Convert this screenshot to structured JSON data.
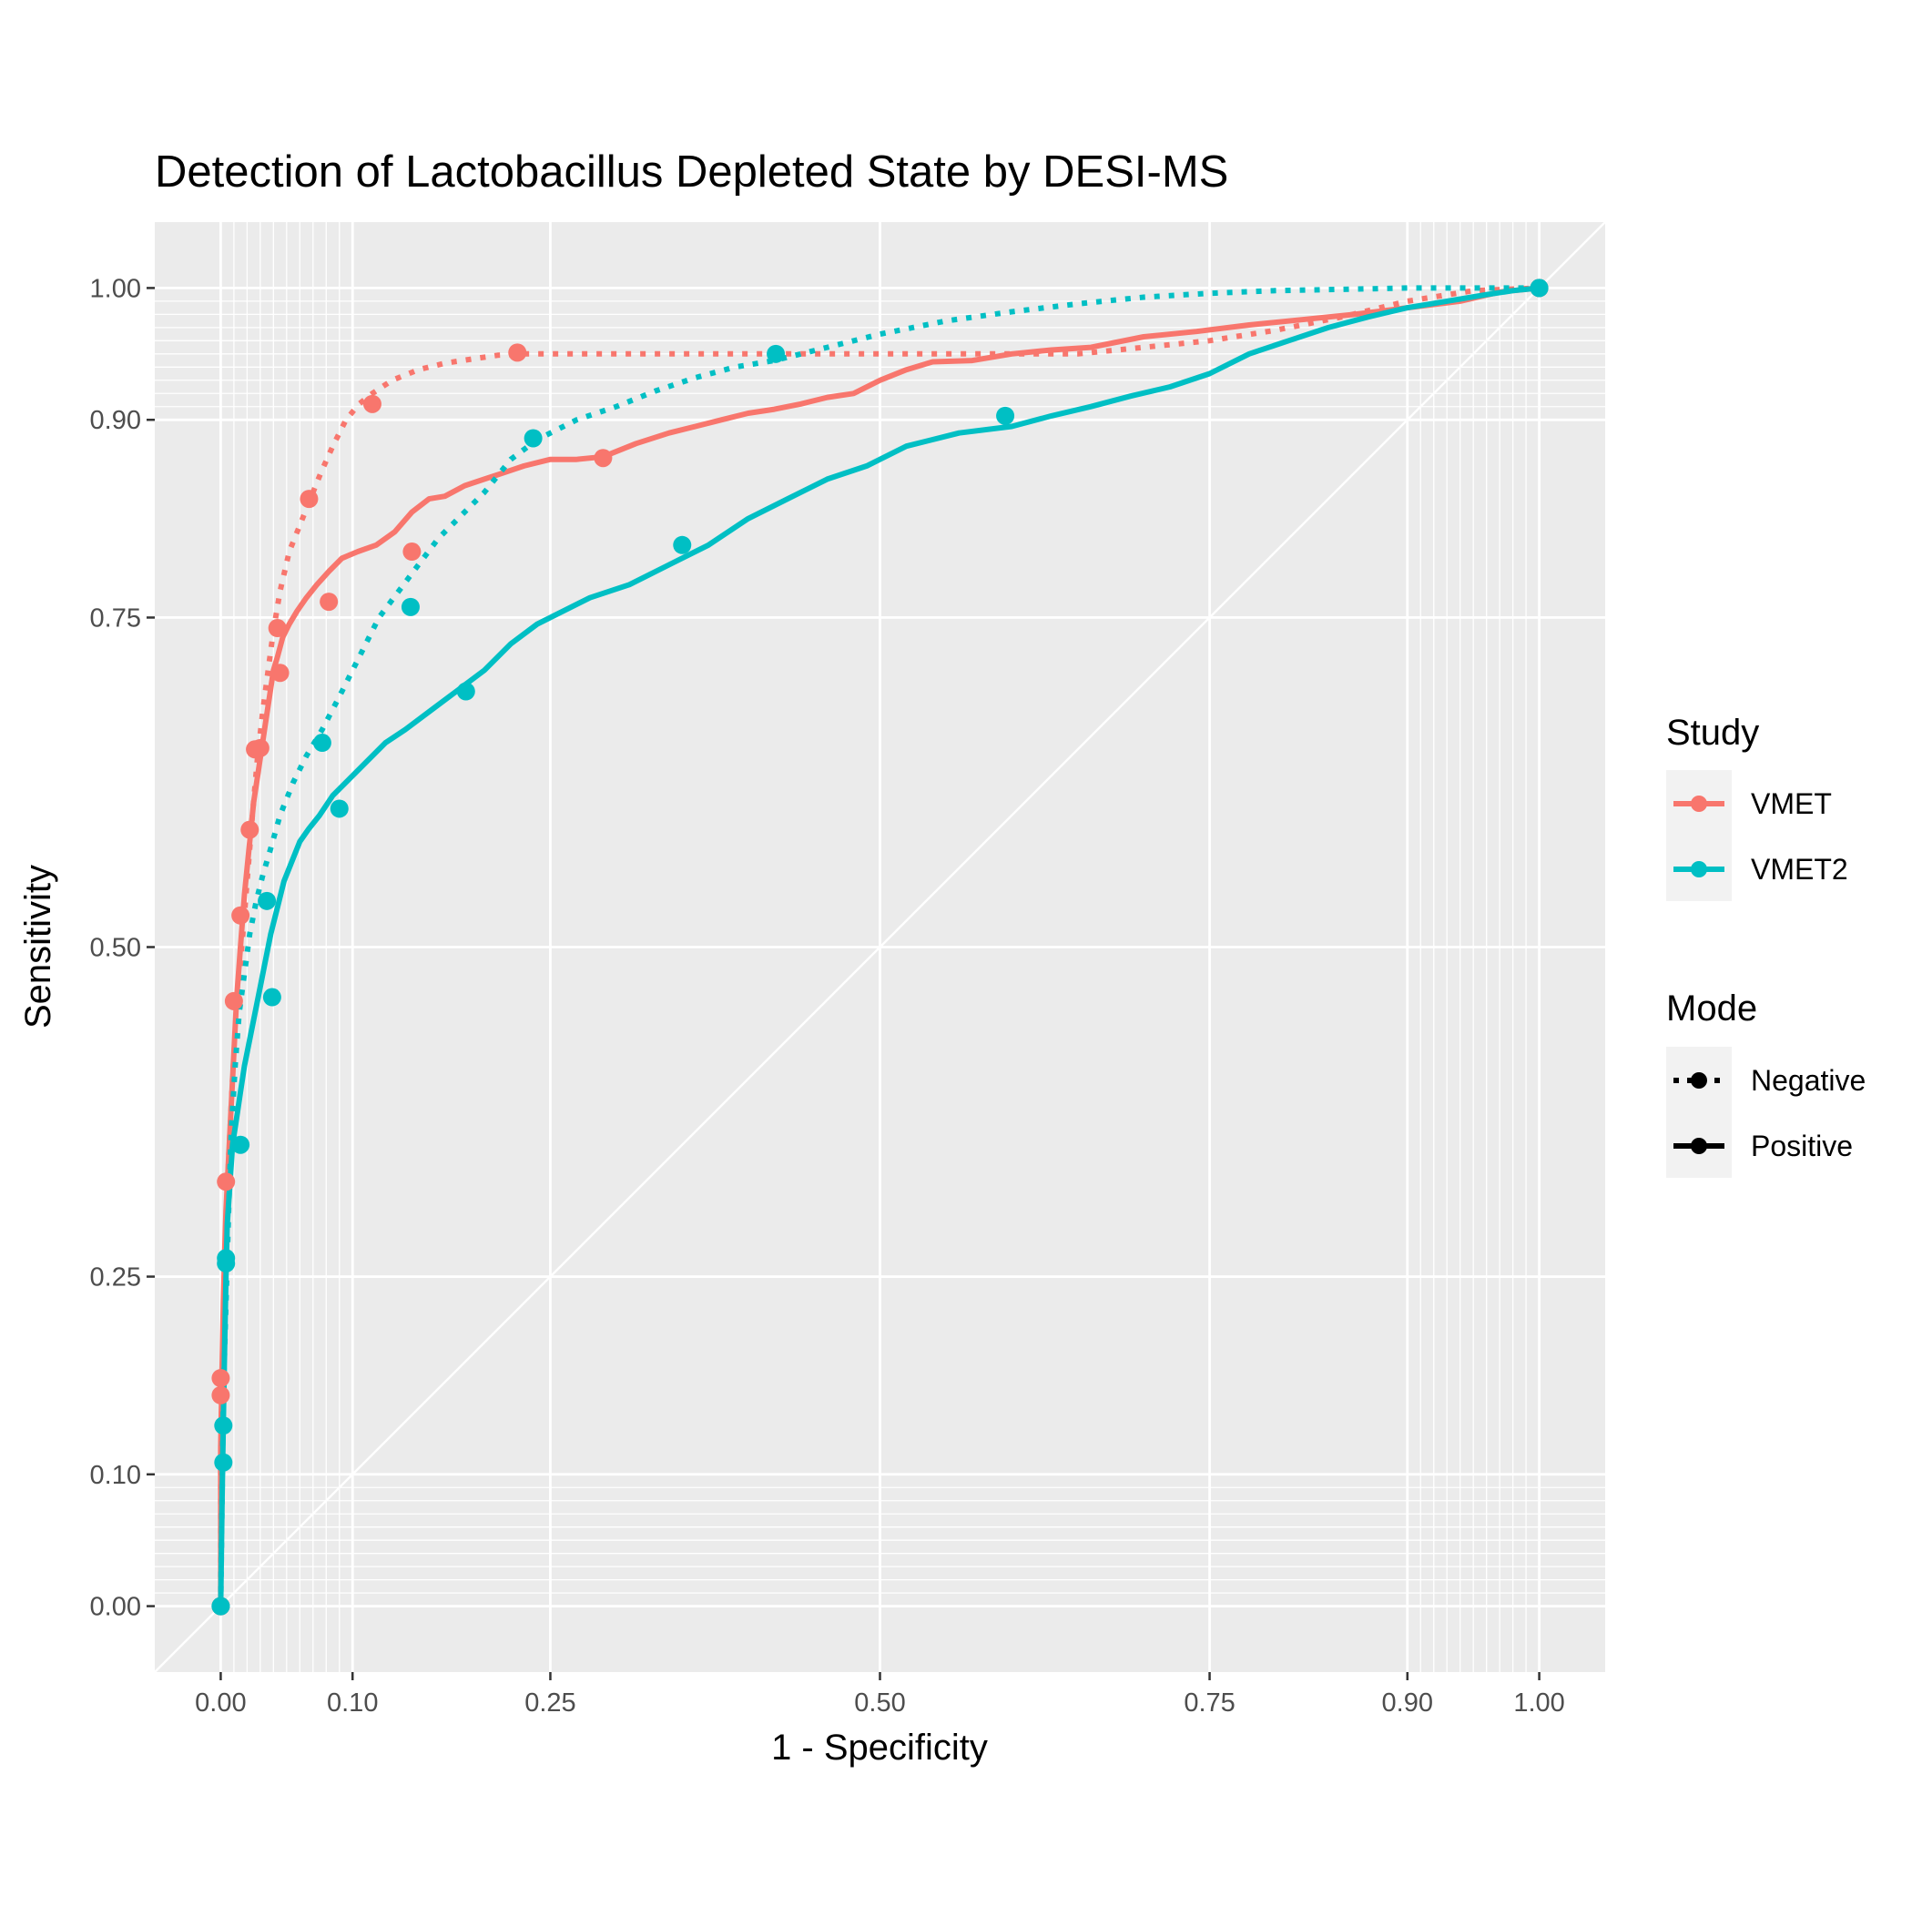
{
  "chart_data": {
    "type": "line",
    "title": "Detection of Lactobacillus Depleted State by DESI-MS",
    "xlabel": "1 - Specificity",
    "ylabel": "Sensitivity",
    "xlim": [
      -0.05,
      1.05
    ],
    "ylim": [
      -0.05,
      1.05
    ],
    "x_ticks": [
      0.0,
      0.1,
      0.25,
      0.5,
      0.75,
      0.9,
      1.0
    ],
    "x_tick_labels": [
      "0.00",
      "0.10",
      "0.25",
      "0.50",
      "0.75",
      "0.90",
      "1.00"
    ],
    "y_ticks": [
      0.0,
      0.1,
      0.25,
      0.5,
      0.75,
      0.9,
      1.0
    ],
    "y_tick_labels": [
      "0.00",
      "0.10",
      "0.25",
      "0.50",
      "0.75",
      "0.90",
      "1.00"
    ],
    "x_minor_grid": [
      0.01,
      0.02,
      0.03,
      0.04,
      0.05,
      0.06,
      0.07,
      0.08,
      0.09,
      0.91,
      0.92,
      0.93,
      0.94,
      0.95,
      0.96,
      0.97,
      0.98,
      0.99
    ],
    "y_minor_grid": [
      0.01,
      0.02,
      0.03,
      0.04,
      0.05,
      0.06,
      0.07,
      0.08,
      0.09,
      0.91,
      0.92,
      0.93,
      0.94,
      0.95,
      0.96,
      0.97,
      0.98,
      0.99
    ],
    "grid": true,
    "diagonal_reference": true,
    "colors": {
      "VMET": "#F8766D",
      "VMET2": "#00BFC4",
      "panel": "#EBEBEB",
      "grid": "#FFFFFF"
    },
    "legend": {
      "position": "right",
      "study_title": "Study",
      "study_items": [
        {
          "label": "VMET",
          "color": "#F8766D"
        },
        {
          "label": "VMET2",
          "color": "#00BFC4"
        }
      ],
      "mode_title": "Mode",
      "mode_items": [
        {
          "label": "Negative",
          "linetype": "dotted"
        },
        {
          "label": "Positive",
          "linetype": "solid"
        }
      ]
    },
    "series": [
      {
        "study": "VMET",
        "mode": "Positive",
        "color": "#F8766D",
        "linetype": "solid",
        "x": [
          0.0,
          0.0,
          0.001,
          0.002,
          0.003,
          0.004,
          0.006,
          0.008,
          0.01,
          0.012,
          0.015,
          0.018,
          0.02,
          0.022,
          0.025,
          0.028,
          0.031,
          0.034,
          0.037,
          0.04,
          0.043,
          0.047,
          0.052,
          0.058,
          0.065,
          0.073,
          0.082,
          0.092,
          0.104,
          0.118,
          0.132,
          0.145,
          0.158,
          0.17,
          0.185,
          0.2,
          0.215,
          0.23,
          0.25,
          0.27,
          0.29,
          0.315,
          0.34,
          0.36,
          0.38,
          0.4,
          0.42,
          0.44,
          0.46,
          0.48,
          0.5,
          0.52,
          0.54,
          0.57,
          0.6,
          0.63,
          0.66,
          0.7,
          0.74,
          0.78,
          0.82,
          0.86,
          0.9,
          0.94,
          0.97,
          1.0
        ],
        "y": [
          0.0,
          0.12,
          0.18,
          0.23,
          0.27,
          0.3,
          0.34,
          0.38,
          0.42,
          0.46,
          0.5,
          0.54,
          0.56,
          0.58,
          0.61,
          0.63,
          0.65,
          0.67,
          0.69,
          0.71,
          0.72,
          0.735,
          0.745,
          0.755,
          0.765,
          0.775,
          0.785,
          0.795,
          0.8,
          0.805,
          0.815,
          0.83,
          0.84,
          0.842,
          0.85,
          0.855,
          0.86,
          0.865,
          0.87,
          0.87,
          0.872,
          0.882,
          0.89,
          0.895,
          0.9,
          0.905,
          0.908,
          0.912,
          0.917,
          0.92,
          0.93,
          0.938,
          0.944,
          0.945,
          0.95,
          0.953,
          0.955,
          0.963,
          0.967,
          0.972,
          0.976,
          0.98,
          0.985,
          0.99,
          0.997,
          1.0
        ]
      },
      {
        "study": "VMET",
        "mode": "Negative",
        "color": "#F8766D",
        "linetype": "dotted",
        "x": [
          0.0,
          0.0,
          0.002,
          0.004,
          0.006,
          0.009,
          0.012,
          0.016,
          0.02,
          0.024,
          0.028,
          0.032,
          0.036,
          0.04,
          0.045,
          0.052,
          0.06,
          0.068,
          0.076,
          0.085,
          0.095,
          0.105,
          0.115,
          0.13,
          0.15,
          0.17,
          0.19,
          0.21,
          0.23,
          0.26,
          0.3,
          0.35,
          0.4,
          0.45,
          0.5,
          0.55,
          0.6,
          0.65,
          0.7,
          0.75,
          0.8,
          0.85,
          0.9,
          0.95,
          1.0
        ],
        "y": [
          0.0,
          0.12,
          0.2,
          0.28,
          0.34,
          0.4,
          0.45,
          0.5,
          0.55,
          0.6,
          0.645,
          0.68,
          0.71,
          0.74,
          0.77,
          0.8,
          0.82,
          0.84,
          0.86,
          0.88,
          0.9,
          0.912,
          0.92,
          0.93,
          0.938,
          0.943,
          0.946,
          0.949,
          0.95,
          0.95,
          0.95,
          0.95,
          0.95,
          0.95,
          0.95,
          0.95,
          0.95,
          0.95,
          0.955,
          0.96,
          0.968,
          0.978,
          0.99,
          0.998,
          1.0
        ]
      },
      {
        "study": "VMET2",
        "mode": "Positive",
        "color": "#00BFC4",
        "linetype": "solid",
        "x": [
          0.0,
          0.001,
          0.002,
          0.003,
          0.004,
          0.005,
          0.007,
          0.009,
          0.012,
          0.015,
          0.018,
          0.022,
          0.026,
          0.03,
          0.034,
          0.038,
          0.043,
          0.048,
          0.054,
          0.06,
          0.067,
          0.075,
          0.085,
          0.095,
          0.11,
          0.125,
          0.14,
          0.16,
          0.18,
          0.2,
          0.22,
          0.24,
          0.26,
          0.28,
          0.31,
          0.34,
          0.37,
          0.4,
          0.43,
          0.46,
          0.49,
          0.52,
          0.56,
          0.6,
          0.63,
          0.66,
          0.69,
          0.72,
          0.75,
          0.78,
          0.81,
          0.84,
          0.87,
          0.9,
          0.93,
          0.96,
          0.98,
          1.0
        ],
        "y": [
          0.0,
          0.08,
          0.14,
          0.2,
          0.25,
          0.29,
          0.32,
          0.35,
          0.37,
          0.39,
          0.41,
          0.43,
          0.45,
          0.47,
          0.49,
          0.51,
          0.53,
          0.55,
          0.565,
          0.58,
          0.59,
          0.6,
          0.615,
          0.625,
          0.64,
          0.655,
          0.665,
          0.68,
          0.695,
          0.71,
          0.73,
          0.745,
          0.755,
          0.765,
          0.775,
          0.79,
          0.805,
          0.825,
          0.84,
          0.855,
          0.865,
          0.88,
          0.89,
          0.895,
          0.903,
          0.91,
          0.918,
          0.925,
          0.935,
          0.95,
          0.96,
          0.97,
          0.978,
          0.985,
          0.99,
          0.995,
          0.998,
          1.0
        ]
      },
      {
        "study": "VMET2",
        "mode": "Negative",
        "color": "#00BFC4",
        "linetype": "dotted",
        "x": [
          0.0,
          0.001,
          0.002,
          0.004,
          0.006,
          0.008,
          0.011,
          0.014,
          0.018,
          0.022,
          0.027,
          0.032,
          0.038,
          0.045,
          0.055,
          0.065,
          0.077,
          0.09,
          0.105,
          0.12,
          0.135,
          0.15,
          0.165,
          0.18,
          0.2,
          0.22,
          0.24,
          0.27,
          0.3,
          0.33,
          0.36,
          0.39,
          0.42,
          0.46,
          0.5,
          0.55,
          0.6,
          0.65,
          0.7,
          0.75,
          0.8,
          0.85,
          0.9,
          0.95,
          1.0
        ],
        "y": [
          0.0,
          0.08,
          0.16,
          0.23,
          0.3,
          0.36,
          0.41,
          0.45,
          0.48,
          0.51,
          0.535,
          0.555,
          0.575,
          0.6,
          0.625,
          0.645,
          0.665,
          0.69,
          0.72,
          0.75,
          0.77,
          0.79,
          0.81,
          0.825,
          0.845,
          0.87,
          0.885,
          0.9,
          0.91,
          0.922,
          0.932,
          0.94,
          0.945,
          0.955,
          0.965,
          0.975,
          0.982,
          0.988,
          0.993,
          0.996,
          0.998,
          0.999,
          1.0,
          1.0,
          1.0
        ]
      }
    ],
    "point_markers": [
      {
        "series": "VMET Positive",
        "x": [
          0.0,
          0.0,
          0.004,
          0.01,
          0.015,
          0.022,
          0.03,
          0.045,
          0.082,
          0.145,
          0.29,
          1.0
        ],
        "y": [
          0.0,
          0.173,
          0.322,
          0.459,
          0.524,
          0.589,
          0.651,
          0.708,
          0.762,
          0.8,
          0.871,
          1.0
        ]
      },
      {
        "series": "VMET Negative",
        "x": [
          0.0,
          0.0,
          0.026,
          0.043,
          0.067,
          0.115,
          0.225,
          1.0
        ],
        "y": [
          0.0,
          0.16,
          0.65,
          0.742,
          0.84,
          0.912,
          0.951,
          1.0
        ]
      },
      {
        "series": "VMET2 Positive",
        "x": [
          0.0,
          0.002,
          0.002,
          0.004,
          0.004,
          0.015,
          0.039,
          0.09,
          0.186,
          0.35,
          0.595,
          1.0
        ],
        "y": [
          0.0,
          0.109,
          0.137,
          0.264,
          0.26,
          0.35,
          0.462,
          0.605,
          0.694,
          0.805,
          0.903,
          1.0
        ]
      },
      {
        "series": "VMET2 Negative",
        "x": [
          0.0,
          0.035,
          0.077,
          0.144,
          0.237,
          0.421,
          1.0
        ],
        "y": [
          0.0,
          0.535,
          0.655,
          0.758,
          0.886,
          0.95,
          1.0
        ]
      }
    ]
  }
}
